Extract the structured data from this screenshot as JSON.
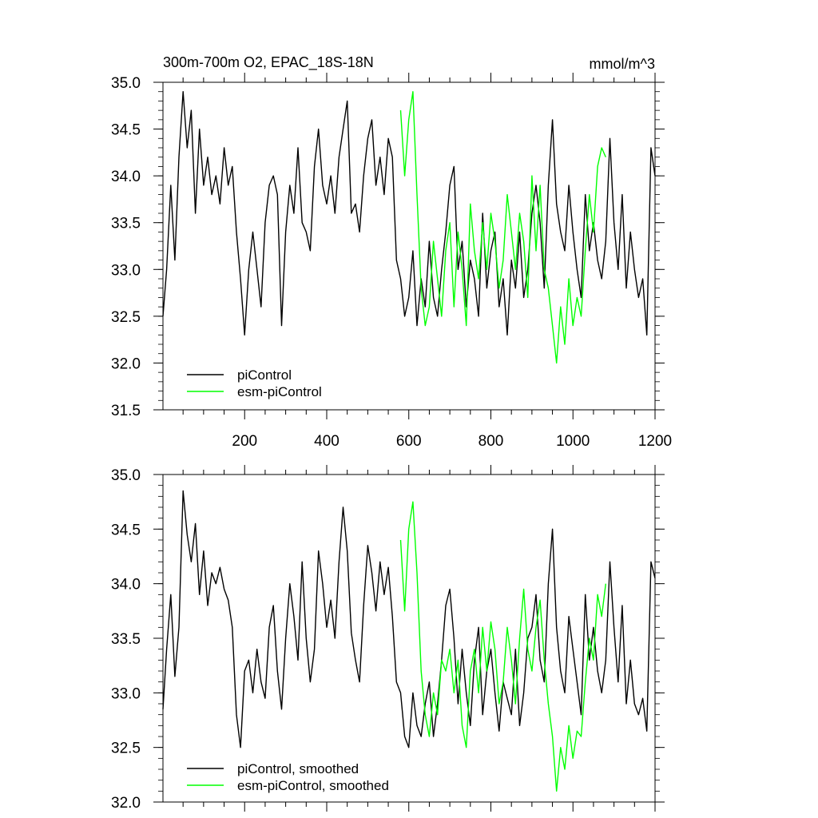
{
  "chart_data": [
    {
      "type": "line",
      "title": "300m-700m O2, EPAC_18S-18N",
      "units": "mmol/m^3",
      "xlim": [
        1,
        1200
      ],
      "ylim": [
        31.5,
        35.0
      ],
      "x_ticks": [
        200,
        400,
        600,
        800,
        1000,
        1200
      ],
      "y_ticks": [
        "31.5",
        "32.0",
        "32.5",
        "33.0",
        "33.5",
        "34.0",
        "34.5",
        "35.0"
      ],
      "legend_position": "bottom-left",
      "series": [
        {
          "name": "piControl",
          "color": "#000000",
          "x": [
            1,
            10,
            20,
            30,
            40,
            50,
            60,
            70,
            80,
            90,
            100,
            110,
            120,
            130,
            140,
            150,
            160,
            170,
            180,
            190,
            200,
            210,
            220,
            230,
            240,
            250,
            260,
            270,
            280,
            290,
            300,
            310,
            320,
            330,
            340,
            350,
            360,
            370,
            380,
            390,
            400,
            410,
            420,
            430,
            440,
            450,
            460,
            470,
            480,
            490,
            500,
            510,
            520,
            530,
            540,
            550,
            560,
            570,
            580,
            590,
            600,
            610,
            620,
            630,
            640,
            650,
            660,
            670,
            680,
            690,
            700,
            710,
            720,
            730,
            740,
            750,
            760,
            770,
            780,
            790,
            800,
            810,
            820,
            830,
            840,
            850,
            860,
            870,
            880,
            890,
            900,
            910,
            920,
            930,
            940,
            950,
            960,
            970,
            980,
            990,
            1000,
            1010,
            1020,
            1030,
            1040,
            1050,
            1060,
            1070,
            1080,
            1090,
            1100,
            1110,
            1120,
            1130,
            1140,
            1150,
            1160,
            1170,
            1180,
            1190,
            1200
          ],
          "y": [
            32.5,
            33.0,
            33.9,
            33.1,
            34.2,
            34.9,
            34.3,
            34.7,
            33.6,
            34.5,
            33.9,
            34.2,
            33.8,
            34.0,
            33.7,
            34.3,
            33.9,
            34.1,
            33.4,
            32.9,
            32.3,
            33.0,
            33.4,
            33.0,
            32.6,
            33.5,
            33.9,
            34.0,
            33.8,
            32.4,
            33.4,
            33.9,
            33.6,
            34.3,
            33.5,
            33.4,
            33.2,
            34.1,
            34.5,
            33.9,
            33.7,
            34.0,
            33.6,
            34.2,
            34.5,
            34.8,
            33.6,
            33.7,
            33.4,
            34.0,
            34.4,
            34.6,
            33.9,
            34.2,
            33.8,
            34.4,
            34.2,
            33.1,
            32.9,
            32.5,
            32.7,
            33.2,
            32.4,
            32.9,
            32.6,
            33.3,
            32.7,
            32.5,
            33.0,
            33.4,
            33.9,
            34.1,
            33.0,
            33.3,
            32.6,
            33.1,
            32.9,
            32.5,
            33.6,
            32.8,
            33.2,
            33.4,
            32.6,
            32.9,
            32.3,
            33.1,
            32.8,
            33.4,
            32.7,
            33.0,
            33.6,
            33.9,
            33.5,
            32.8,
            33.9,
            34.6,
            33.7,
            33.4,
            33.2,
            33.9,
            33.4,
            33.0,
            32.7,
            33.8,
            33.2,
            33.5,
            33.1,
            32.9,
            33.3,
            34.4,
            33.5,
            33.0,
            33.8,
            32.8,
            33.4,
            33.0,
            32.7,
            32.9,
            32.3,
            34.3,
            34.0
          ]
        },
        {
          "name": "esm-piControl",
          "color": "#00ff00",
          "x": [
            580,
            590,
            600,
            610,
            620,
            630,
            640,
            650,
            660,
            670,
            680,
            690,
            700,
            710,
            720,
            730,
            740,
            750,
            760,
            770,
            780,
            790,
            800,
            810,
            820,
            830,
            840,
            850,
            860,
            870,
            880,
            890,
            900,
            910,
            920,
            930,
            940,
            950,
            960,
            970,
            980,
            990,
            1000,
            1010,
            1020,
            1030,
            1040,
            1050,
            1060,
            1070,
            1080
          ],
          "y": [
            34.7,
            34.0,
            34.6,
            34.9,
            33.8,
            32.8,
            32.4,
            32.6,
            33.3,
            32.9,
            32.5,
            33.2,
            33.5,
            32.6,
            33.4,
            33.0,
            32.4,
            33.7,
            33.2,
            32.9,
            33.5,
            33.0,
            33.6,
            33.3,
            32.8,
            33.1,
            33.8,
            33.4,
            33.0,
            33.6,
            33.3,
            32.7,
            34.0,
            33.2,
            33.9,
            33.0,
            32.8,
            32.4,
            32.0,
            32.6,
            32.2,
            32.9,
            32.4,
            32.7,
            32.5,
            33.2,
            33.8,
            33.4,
            34.1,
            34.3,
            34.2
          ]
        }
      ]
    },
    {
      "type": "line",
      "title": "",
      "xlim": [
        1,
        1200
      ],
      "ylim": [
        32.0,
        35.0
      ],
      "y_ticks": [
        "32.0",
        "32.5",
        "33.0",
        "33.5",
        "34.0",
        "34.5",
        "35.0"
      ],
      "legend_position": "bottom-left",
      "series": [
        {
          "name": "piControl, smoothed",
          "color": "#000000",
          "x": [
            1,
            10,
            20,
            30,
            40,
            50,
            60,
            70,
            80,
            90,
            100,
            110,
            120,
            130,
            140,
            150,
            160,
            170,
            180,
            190,
            200,
            210,
            220,
            230,
            240,
            250,
            260,
            270,
            280,
            290,
            300,
            310,
            320,
            330,
            340,
            350,
            360,
            370,
            380,
            390,
            400,
            410,
            420,
            430,
            440,
            450,
            460,
            470,
            480,
            490,
            500,
            510,
            520,
            530,
            540,
            550,
            560,
            570,
            580,
            590,
            600,
            610,
            620,
            630,
            640,
            650,
            660,
            670,
            680,
            690,
            700,
            710,
            720,
            730,
            740,
            750,
            760,
            770,
            780,
            790,
            800,
            810,
            820,
            830,
            840,
            850,
            860,
            870,
            880,
            890,
            900,
            910,
            920,
            930,
            940,
            950,
            960,
            970,
            980,
            990,
            1000,
            1010,
            1020,
            1030,
            1040,
            1050,
            1060,
            1070,
            1080,
            1090,
            1100,
            1110,
            1120,
            1130,
            1140,
            1150,
            1160,
            1170,
            1180,
            1190,
            1200
          ],
          "y": [
            32.85,
            33.4,
            33.9,
            33.15,
            33.6,
            34.85,
            34.45,
            34.2,
            34.55,
            33.9,
            34.3,
            33.8,
            34.1,
            34.0,
            34.15,
            33.95,
            33.85,
            33.6,
            32.8,
            32.5,
            33.2,
            33.3,
            33.0,
            33.4,
            33.1,
            32.95,
            33.6,
            33.8,
            33.2,
            32.85,
            33.5,
            34.0,
            33.7,
            33.3,
            34.2,
            33.5,
            33.1,
            33.4,
            34.3,
            34.0,
            33.6,
            33.85,
            33.5,
            34.2,
            34.7,
            34.3,
            33.55,
            33.3,
            33.1,
            33.8,
            34.35,
            34.1,
            33.75,
            34.2,
            33.9,
            34.15,
            33.7,
            33.1,
            33.0,
            32.6,
            32.5,
            33.0,
            32.7,
            32.6,
            32.9,
            33.1,
            32.6,
            32.9,
            33.3,
            33.8,
            33.95,
            33.5,
            32.9,
            33.4,
            33.0,
            32.7,
            33.3,
            33.6,
            32.8,
            33.2,
            33.4,
            33.0,
            32.65,
            33.1,
            32.95,
            32.8,
            33.4,
            32.7,
            33.0,
            33.5,
            33.6,
            33.9,
            33.3,
            33.1,
            34.0,
            34.5,
            33.6,
            33.2,
            33.0,
            33.7,
            33.4,
            33.1,
            32.8,
            33.9,
            33.3,
            33.6,
            33.2,
            33.0,
            33.3,
            34.2,
            33.6,
            33.1,
            33.8,
            32.9,
            33.3,
            32.9,
            32.8,
            32.95,
            32.65,
            34.2,
            34.05
          ]
        },
        {
          "name": "esm-piControl, smoothed",
          "color": "#00ff00",
          "x": [
            580,
            590,
            600,
            610,
            620,
            630,
            640,
            650,
            660,
            670,
            680,
            690,
            700,
            710,
            720,
            730,
            740,
            750,
            760,
            770,
            780,
            790,
            800,
            810,
            820,
            830,
            840,
            850,
            860,
            870,
            880,
            890,
            900,
            910,
            920,
            930,
            940,
            950,
            960,
            970,
            980,
            990,
            1000,
            1010,
            1020,
            1030,
            1040,
            1050,
            1060,
            1070,
            1080
          ],
          "y": [
            34.4,
            33.75,
            34.5,
            34.75,
            34.1,
            33.2,
            32.8,
            32.6,
            33.0,
            32.8,
            33.3,
            33.2,
            33.4,
            33.0,
            33.3,
            32.7,
            32.5,
            33.2,
            33.4,
            33.0,
            33.6,
            33.2,
            33.65,
            33.4,
            32.9,
            33.1,
            33.6,
            33.3,
            32.9,
            33.5,
            33.95,
            33.4,
            33.2,
            33.6,
            33.85,
            33.3,
            32.9,
            32.6,
            32.1,
            32.5,
            32.3,
            32.7,
            32.4,
            32.65,
            32.6,
            33.1,
            33.5,
            33.3,
            33.9,
            33.7,
            34.0
          ]
        }
      ]
    }
  ]
}
